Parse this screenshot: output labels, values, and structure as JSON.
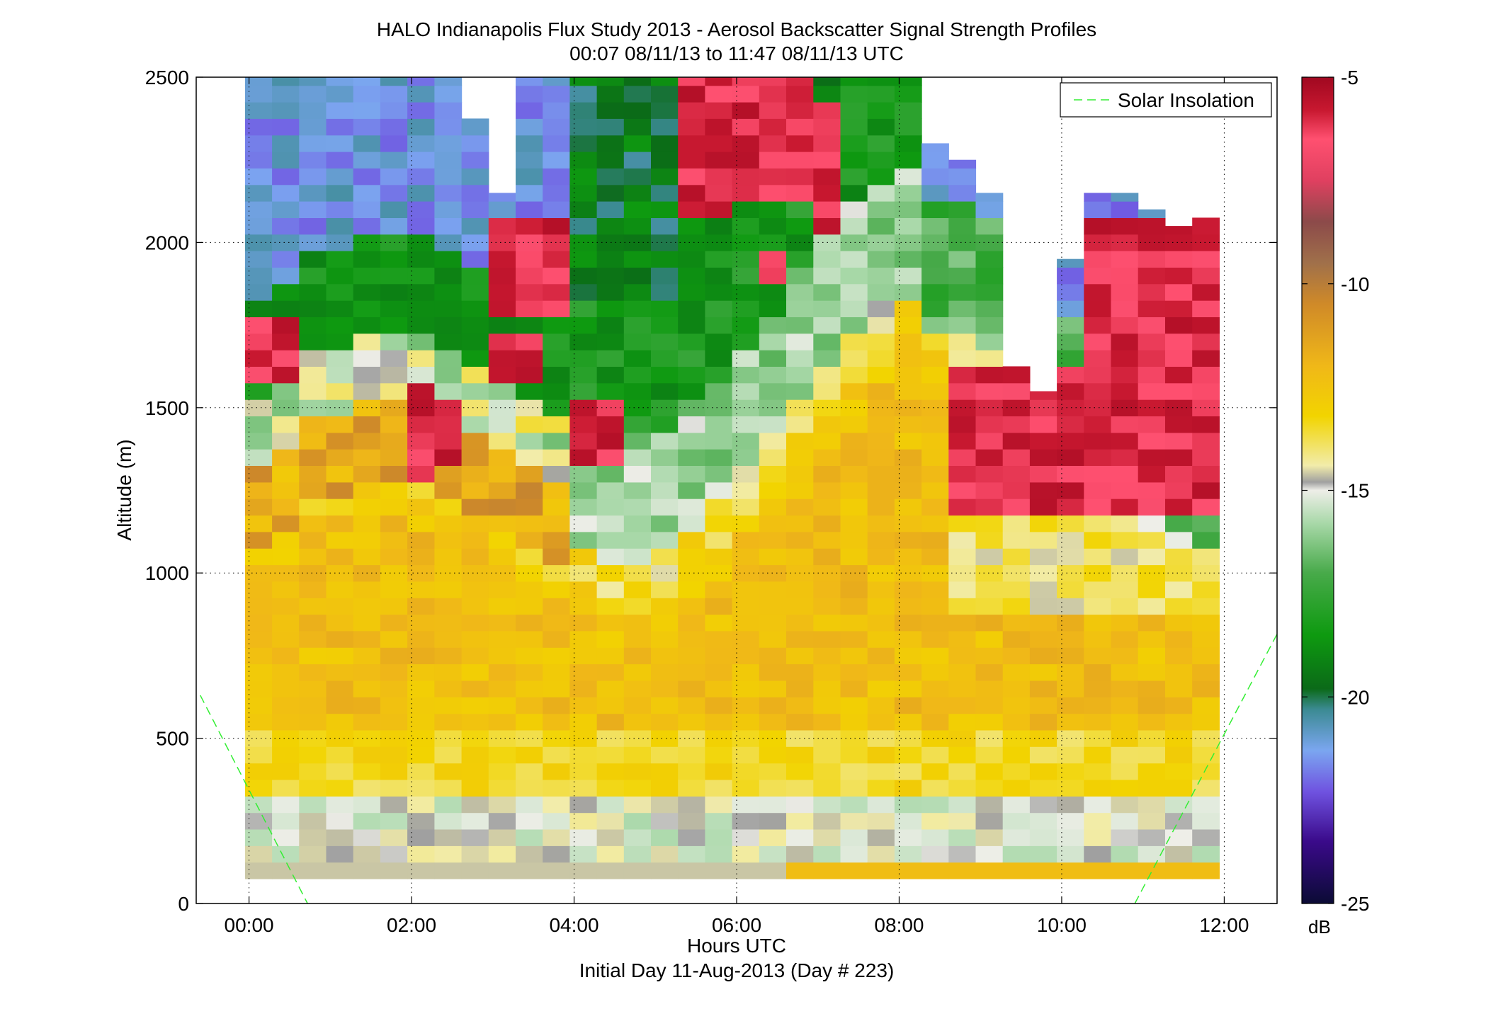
{
  "chart_data": {
    "type": "heatmap",
    "title": "HALO Indianapolis Flux Study 2013 - Aerosol Backscatter Signal Strength Profiles",
    "subtitle": "00:07 08/11/13 to 11:47 08/11/13  UTC",
    "xlabel": "Hours UTC",
    "xlabel2": "Initial Day 11-Aug-2013 (Day # 223)",
    "ylabel": "Altitude (m)",
    "x_ticks": [
      "00:00",
      "02:00",
      "04:00",
      "06:00",
      "08:00",
      "10:00",
      "12:00"
    ],
    "x_tick_hours": [
      0,
      2,
      4,
      6,
      8,
      10,
      12
    ],
    "xlim_hours": [
      -0.65,
      12.65
    ],
    "y_ticks": [
      "0",
      "500",
      "1000",
      "1500",
      "2000",
      "2500"
    ],
    "y_tick_values": [
      0,
      500,
      1000,
      1500,
      2000,
      2500
    ],
    "ylim": [
      0,
      2500
    ],
    "grid": true,
    "legend": {
      "position": "top-right",
      "entries": [
        "Solar Insolation"
      ]
    },
    "colorbar": {
      "label": "dB",
      "ticks": [
        "-5",
        "-10",
        "-15",
        "-20",
        "-25"
      ],
      "tick_values": [
        -5,
        -10,
        -15,
        -20,
        -25
      ],
      "range": [
        -25,
        -5
      ],
      "stops": [
        {
          "v": -25,
          "c": "#0b0b35"
        },
        {
          "v": -23.5,
          "c": "#3a0a8a"
        },
        {
          "v": -22.3,
          "c": "#6f52e0"
        },
        {
          "v": -21.3,
          "c": "#7ba6f0"
        },
        {
          "v": -20.3,
          "c": "#3b8a92"
        },
        {
          "v": -19.8,
          "c": "#0b6a18"
        },
        {
          "v": -18.5,
          "c": "#0e9a10"
        },
        {
          "v": -17.0,
          "c": "#48aa4a"
        },
        {
          "v": -15.8,
          "c": "#a8d8a8"
        },
        {
          "v": -15.0,
          "c": "#eeeee8"
        },
        {
          "v": -14.8,
          "c": "#a0a0a0"
        },
        {
          "v": -14.4,
          "c": "#f2ecaa"
        },
        {
          "v": -13.2,
          "c": "#f2d400"
        },
        {
          "v": -12.0,
          "c": "#f0b818"
        },
        {
          "v": -10.5,
          "c": "#d08a28"
        },
        {
          "v": -9.5,
          "c": "#a0704a"
        },
        {
          "v": -8.5,
          "c": "#8c4a4a"
        },
        {
          "v": -7.5,
          "c": "#e04060"
        },
        {
          "v": -6.5,
          "c": "#ff5070"
        },
        {
          "v": -5.8,
          "c": "#c81830"
        },
        {
          "v": -5.0,
          "c": "#a00820"
        }
      ]
    },
    "solar_insolation": {
      "name": "Solar Insolation",
      "color": "#33ee33",
      "segments": [
        {
          "x_hours": [
            -0.6,
            0.72
          ],
          "y": [
            630,
            0
          ]
        },
        {
          "x_hours": [
            10.9,
            12.65
          ],
          "y": [
            0,
            815
          ]
        }
      ]
    },
    "grid_data": {
      "time_start_hours": 0.117,
      "time_end_hours": 11.783,
      "time_step_hours": 0.333,
      "altitude_bin_m": 75,
      "altitude_start_m": 75,
      "nodata_value": null,
      "columns_top_alt_m": [
        2500,
        2500,
        2500,
        2500,
        2500,
        2500,
        2500,
        2500,
        2500,
        2150,
        2500,
        2500,
        2500,
        2500,
        2500,
        2500,
        2500,
        2500,
        2500,
        2500,
        2500,
        2500,
        2500,
        2500,
        2500,
        2300,
        2250,
        2150,
        1625,
        1550,
        1950,
        2150,
        2150,
        2100,
        2050,
        2075
      ],
      "description_regions": [
        {
          "t": [
            0.1,
            11.8
          ],
          "alt": [
            75,
            300
          ],
          "db": -15.2
        },
        {
          "t": [
            0.1,
            11.8
          ],
          "alt": [
            300,
            1000
          ],
          "db": -12.8
        },
        {
          "t": [
            0.1,
            4.0
          ],
          "alt": [
            1000,
            1500
          ],
          "db": -12.0
        },
        {
          "t": [
            4.0,
            8.0
          ],
          "alt": [
            1350,
            1800
          ],
          "db": -16.5
        },
        {
          "t": [
            4.3,
            8.4
          ],
          "alt": [
            1800,
            2300
          ],
          "db": -18.7
        },
        {
          "t": [
            0.1,
            4.0
          ],
          "alt": [
            1800,
            2100
          ],
          "db": -19.0
        },
        {
          "t": [
            0.1,
            4.0
          ],
          "alt": [
            2100,
            2500
          ],
          "db": -21.3
        },
        {
          "t": [
            8.0,
            9.0
          ],
          "alt": [
            2000,
            2300
          ],
          "db": -22.2
        },
        {
          "t": [
            8.7,
            11.8
          ],
          "alt": [
            1100,
            1600
          ],
          "db": -5.5
        },
        {
          "t": [
            2.8,
            3.9
          ],
          "alt": [
            1800,
            2050
          ],
          "db": -5.3
        },
        {
          "t": [
            5.3,
            7.3
          ],
          "alt": [
            2100,
            2500
          ],
          "db": -5.4
        }
      ]
    }
  }
}
